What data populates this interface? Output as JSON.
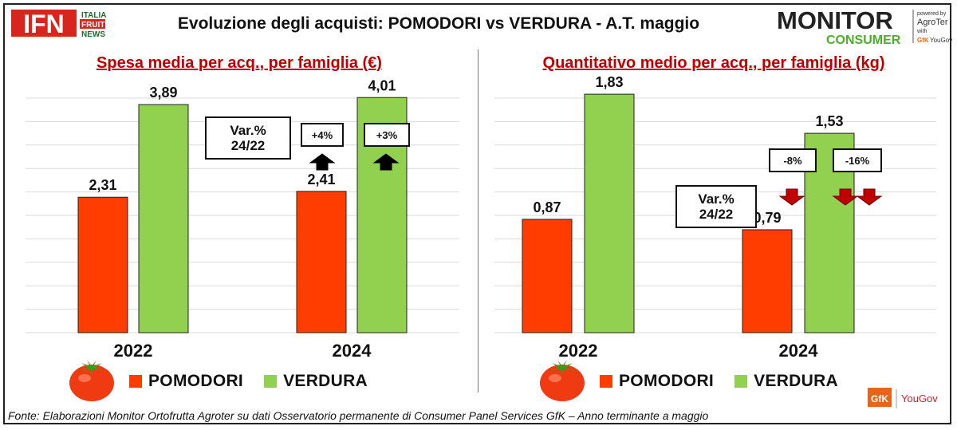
{
  "header": {
    "title": "Evoluzione degli acquisti: POMODORI vs VERDURA  - A.T. maggio",
    "ifn_logo": {
      "text": "IFN",
      "line1": "ITALIA",
      "line2": "FRUIT",
      "line3": "NEWS",
      "icon": "ifn-logo"
    },
    "monitor_logo": {
      "line1": "MONITOR",
      "line2": "CONSUMER",
      "powered_by": "powered by",
      "agroter": "AgroTer",
      "with": "with",
      "gfk": "GfK",
      "yougov": "YouGov"
    }
  },
  "colors": {
    "pomodori": "#ff3d00",
    "verdura": "#92d050",
    "title_red": "#c00000",
    "arrow_up": "#000000",
    "arrow_down": "#c00000"
  },
  "chart_data": [
    {
      "type": "bar",
      "title": "Spesa media per acq., per famiglia (€)",
      "categories": [
        "2022",
        "2024"
      ],
      "series": [
        {
          "name": "POMODORI",
          "values": [
            2.31,
            2.41
          ],
          "labels": [
            "2,31",
            "2,41"
          ]
        },
        {
          "name": "VERDURA",
          "values": [
            3.89,
            4.01
          ],
          "labels": [
            "3,89",
            "4,01"
          ]
        }
      ],
      "ylim": [
        0,
        4.0
      ],
      "grid": true,
      "legend": "bottom",
      "var_label": "Var.%\n24/22",
      "changes": [
        {
          "series": "POMODORI",
          "text": "+4%",
          "direction": "up"
        },
        {
          "series": "VERDURA",
          "text": "+3%",
          "direction": "up"
        }
      ]
    },
    {
      "type": "bar",
      "title": "Quantitativo medio per acq., per famiglia (kg)",
      "categories": [
        "2022",
        "2024"
      ],
      "series": [
        {
          "name": "POMODORI",
          "values": [
            0.87,
            0.79
          ],
          "labels": [
            "0,87",
            "0,79"
          ]
        },
        {
          "name": "VERDURA",
          "values": [
            1.83,
            1.53
          ],
          "labels": [
            "1,83",
            "1,53"
          ]
        }
      ],
      "ylim": [
        0,
        1.8
      ],
      "grid": true,
      "legend": "bottom",
      "var_label": "Var.%\n24/22",
      "changes": [
        {
          "series": "POMODORI",
          "text": "-8%",
          "direction": "down"
        },
        {
          "series": "VERDURA",
          "text": "-16%",
          "direction": "down"
        }
      ]
    }
  ],
  "legend": {
    "pomodori": "POMODORI",
    "verdura": "VERDURA",
    "icon": "tomato-icon"
  },
  "footer": {
    "source": "Fonte: Elaborazioni Monitor Ortofrutta Agroter su dati Osservatorio permanente di Consumer Panel Services GfK  – Anno terminante a maggio",
    "gfk": "GfK",
    "yougov": "YouGov"
  }
}
